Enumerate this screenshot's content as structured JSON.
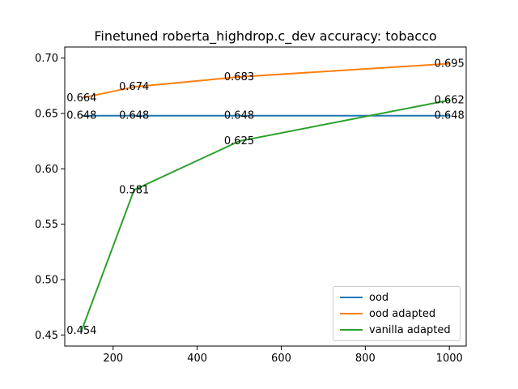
{
  "chart_data": {
    "type": "line",
    "title": "Finetuned roberta_highdrop.c_dev accuracy: tobacco",
    "xlabel": "",
    "ylabel": "",
    "xlim": [
      85,
      1040
    ],
    "ylim": [
      0.44,
      0.71
    ],
    "x_ticks": [
      200,
      400,
      600,
      800,
      1000
    ],
    "y_ticks": [
      0.45,
      0.5,
      0.55,
      0.6,
      0.65,
      0.7
    ],
    "x_tick_labels": [
      "200",
      "400",
      "600",
      "800",
      "1000"
    ],
    "y_tick_labels": [
      "0.45",
      "0.50",
      "0.55",
      "0.60",
      "0.65",
      "0.70"
    ],
    "grid": false,
    "legend_position": "lower-right",
    "series": [
      {
        "name": "ood",
        "color": "#1f77b4",
        "x": [
          125,
          250,
          500,
          1000
        ],
        "y": [
          0.648,
          0.648,
          0.648,
          0.648
        ],
        "labels": [
          "0.648",
          "0.648",
          "0.648",
          "0.648"
        ]
      },
      {
        "name": "ood adapted",
        "color": "#ff7f0e",
        "x": [
          125,
          250,
          500,
          1000
        ],
        "y": [
          0.664,
          0.674,
          0.683,
          0.695
        ],
        "labels": [
          "0.664",
          "0.674",
          "0.683",
          "0.695"
        ]
      },
      {
        "name": "vanilla adapted",
        "color": "#2ca02c",
        "x": [
          125,
          250,
          500,
          1000
        ],
        "y": [
          0.454,
          0.581,
          0.625,
          0.662
        ],
        "labels": [
          "0.454",
          "0.581",
          "0.625",
          "0.662"
        ]
      }
    ]
  }
}
